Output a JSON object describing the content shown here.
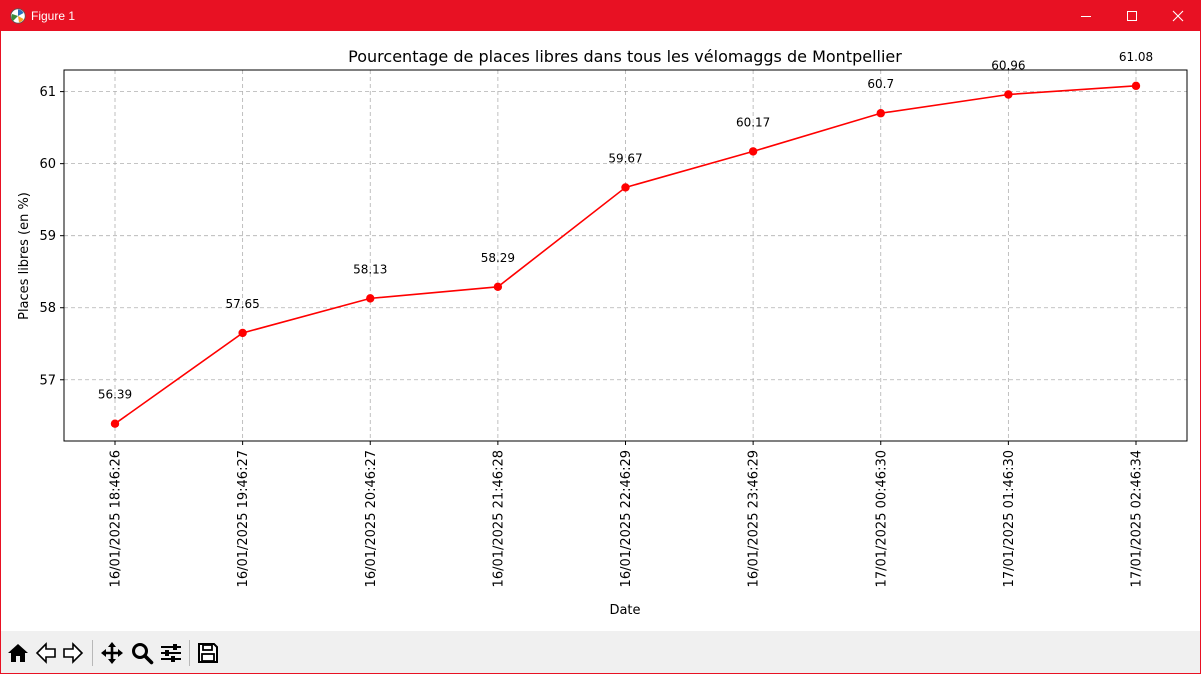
{
  "window": {
    "title": "Figure 1"
  },
  "colors": {
    "titlebar": "#e81123",
    "series": "#ff0000",
    "grid": "#b0b0b0"
  },
  "toolbar": {
    "icons": [
      "home-icon",
      "back-arrow-icon",
      "forward-arrow-icon",
      "pan-icon",
      "zoom-icon",
      "configure-subplots-icon",
      "save-icon"
    ]
  },
  "chart_data": {
    "type": "line",
    "title": "Pourcentage de places libres dans tous les vélomaggs de Montpellier",
    "xlabel": "Date",
    "ylabel": "Places libres (en %)",
    "categories": [
      "16/01/2025 18:46:26",
      "16/01/2025 19:46:27",
      "16/01/2025 20:46:27",
      "16/01/2025 21:46:28",
      "16/01/2025 22:46:29",
      "16/01/2025 23:46:29",
      "17/01/2025 00:46:30",
      "17/01/2025 01:46:30",
      "17/01/2025 02:46:34"
    ],
    "values": [
      56.39,
      57.65,
      58.13,
      58.29,
      59.67,
      60.17,
      60.7,
      60.96,
      61.08
    ],
    "data_labels": [
      "56.39",
      "57.65",
      "58.13",
      "58.29",
      "59.67",
      "60.17",
      "60.7",
      "60.96",
      "61.08"
    ],
    "yticks": [
      57,
      58,
      59,
      60,
      61
    ],
    "ylim": [
      56.15,
      61.3
    ],
    "grid": true,
    "marker": "circle",
    "legend": "none"
  }
}
